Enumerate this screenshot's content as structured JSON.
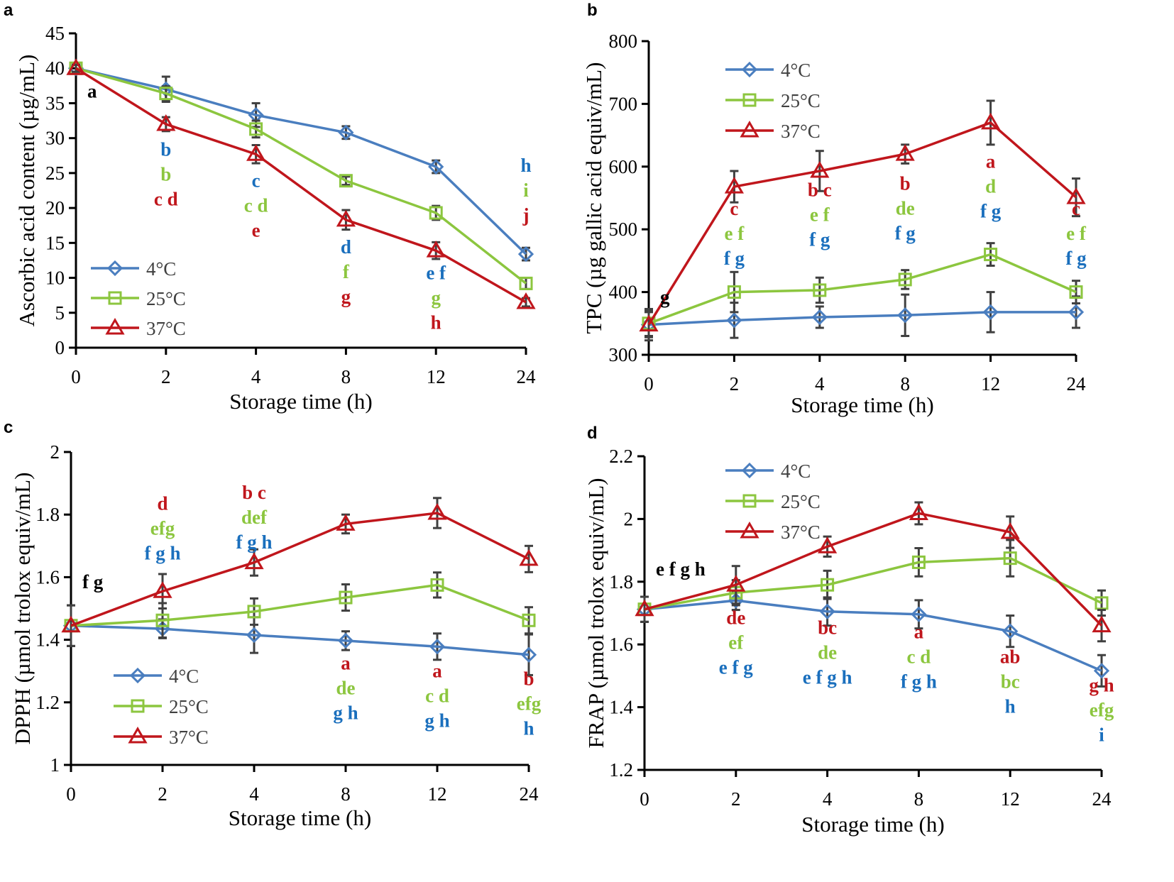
{
  "figure": {
    "series_colors": {
      "4°C": "#4a7ebf",
      "25°C": "#8cc63f",
      "37°C": "#c0161c"
    },
    "letter_colors": {
      "blue": "#1a6fbd",
      "green": "#8cc63f",
      "red": "#c0161c",
      "black": "#000000"
    }
  },
  "chart_data": [
    {
      "panel": "a",
      "type": "line",
      "title": "",
      "xlabel": "Storage time (h)",
      "ylabel": "Ascorbic acid content (µg/mL)",
      "categories": [
        "0",
        "2",
        "4",
        "8",
        "12",
        "24"
      ],
      "ylim": [
        0,
        45
      ],
      "yticks": [
        0,
        5,
        10,
        15,
        20,
        25,
        30,
        35,
        40,
        45
      ],
      "legend": {
        "position": "bottom-left",
        "entries": [
          "4°C",
          "25°C",
          "37°C"
        ]
      },
      "series": [
        {
          "name": "4°C",
          "marker": "diamond",
          "values": [
            40.0,
            37.0,
            33.3,
            30.8,
            25.9,
            13.4
          ],
          "errors": [
            0.5,
            1.8,
            1.7,
            0.9,
            0.9,
            0.9
          ]
        },
        {
          "name": "25°C",
          "marker": "square",
          "values": [
            40.0,
            36.4,
            31.3,
            23.9,
            19.3,
            9.2
          ],
          "errors": [
            0.5,
            1.0,
            1.2,
            0.6,
            1.0,
            0.8
          ]
        },
        {
          "name": "37°C",
          "marker": "triangle",
          "values": [
            40.0,
            32.0,
            27.7,
            18.3,
            13.9,
            6.5
          ],
          "errors": [
            0.5,
            1.0,
            1.3,
            1.4,
            1.2,
            0.6
          ]
        }
      ],
      "annotations": [
        {
          "x": "0",
          "lines": [
            {
              "text": "a",
              "color": "black"
            }
          ],
          "y": 35.8
        },
        {
          "x": "2",
          "lines": [
            {
              "text": "b",
              "color": "blue"
            },
            {
              "text": "b",
              "color": "green"
            },
            {
              "text": "c d",
              "color": "red"
            }
          ],
          "y": 27.5
        },
        {
          "x": "4",
          "lines": [
            {
              "text": "c",
              "color": "blue"
            },
            {
              "text": "c d",
              "color": "green"
            },
            {
              "text": "e",
              "color": "red"
            }
          ],
          "y": 23.0
        },
        {
          "x": "8",
          "lines": [
            {
              "text": "d",
              "color": "blue"
            },
            {
              "text": "f",
              "color": "green"
            },
            {
              "text": "g",
              "color": "red"
            }
          ],
          "y": 13.5
        },
        {
          "x": "12",
          "lines": [
            {
              "text": "e f",
              "color": "blue"
            },
            {
              "text": "g",
              "color": "green"
            },
            {
              "text": "h",
              "color": "red"
            }
          ],
          "y": 9.8
        },
        {
          "x": "24",
          "lines": [
            {
              "text": "h",
              "color": "blue"
            },
            {
              "text": "i",
              "color": "green"
            },
            {
              "text": "j",
              "color": "red"
            }
          ],
          "y": 25.2
        }
      ]
    },
    {
      "panel": "b",
      "type": "line",
      "title": "",
      "xlabel": "Storage time (h)",
      "ylabel": "TPC (µg gallic acid equiv/mL)",
      "categories": [
        "0",
        "2",
        "4",
        "8",
        "12",
        "24"
      ],
      "ylim": [
        300,
        800
      ],
      "yticks": [
        300,
        400,
        500,
        600,
        700,
        800
      ],
      "legend": {
        "position": "top-left",
        "entries": [
          "4°C",
          "25°C",
          "37°C"
        ]
      },
      "series": [
        {
          "name": "4°C",
          "marker": "diamond",
          "values": [
            348,
            355,
            360,
            363,
            368,
            368
          ],
          "errors": [
            25,
            28,
            17,
            33,
            32,
            25
          ]
        },
        {
          "name": "25°C",
          "marker": "square",
          "values": [
            350,
            400,
            403,
            420,
            460,
            400
          ],
          "errors": [
            20,
            32,
            20,
            15,
            18,
            18
          ]
        },
        {
          "name": "37°C",
          "marker": "triangle",
          "values": [
            348,
            568,
            593,
            620,
            670,
            551
          ],
          "errors": [
            20,
            25,
            32,
            15,
            35,
            30
          ]
        }
      ],
      "annotations": [
        {
          "x": "0",
          "lines": [
            {
              "text": "g",
              "color": "black"
            }
          ],
          "y": 382
        },
        {
          "x": "2",
          "lines": [
            {
              "text": "c",
              "color": "red"
            },
            {
              "text": "e f",
              "color": "green"
            },
            {
              "text": "f g",
              "color": "blue"
            }
          ],
          "y": 523
        },
        {
          "x": "4",
          "lines": [
            {
              "text": "b c",
              "color": "red"
            },
            {
              "text": "e f",
              "color": "green"
            },
            {
              "text": "f g",
              "color": "blue"
            }
          ],
          "y": 553
        },
        {
          "x": "8",
          "lines": [
            {
              "text": "b",
              "color": "red"
            },
            {
              "text": "de",
              "color": "green"
            },
            {
              "text": "f g",
              "color": "blue"
            }
          ],
          "y": 563
        },
        {
          "x": "12",
          "lines": [
            {
              "text": "a",
              "color": "red"
            },
            {
              "text": "d",
              "color": "green"
            },
            {
              "text": "f g",
              "color": "blue"
            }
          ],
          "y": 598
        },
        {
          "x": "24",
          "lines": [
            {
              "text": "c",
              "color": "red"
            },
            {
              "text": "e f",
              "color": "green"
            },
            {
              "text": "f g",
              "color": "blue"
            }
          ],
          "y": 523
        }
      ]
    },
    {
      "panel": "c",
      "type": "line",
      "title": "",
      "xlabel": "Storage time (h)",
      "ylabel": "DPPH (µmol trolox equiv/mL)",
      "categories": [
        "0",
        "2",
        "4",
        "8",
        "12",
        "24"
      ],
      "ylim": [
        1,
        2
      ],
      "yticks": [
        1,
        1.2,
        1.4,
        1.6,
        1.8,
        2
      ],
      "legend": {
        "position": "bottom-left",
        "entries": [
          "4°C",
          "25°C",
          "37°C"
        ]
      },
      "series": [
        {
          "name": "4°C",
          "marker": "diamond",
          "values": [
            1.445,
            1.435,
            1.415,
            1.397,
            1.378,
            1.352
          ],
          "errors": [
            0.065,
            0.03,
            0.057,
            0.03,
            0.042,
            0.065
          ]
        },
        {
          "name": "25°C",
          "marker": "square",
          "values": [
            1.445,
            1.462,
            1.49,
            1.535,
            1.575,
            1.462
          ],
          "errors": [
            0.065,
            0.055,
            0.042,
            0.042,
            0.04,
            0.042
          ]
        },
        {
          "name": "37°C",
          "marker": "triangle",
          "values": [
            1.445,
            1.555,
            1.647,
            1.77,
            1.805,
            1.658
          ],
          "errors": [
            0.065,
            0.055,
            0.042,
            0.03,
            0.048,
            0.042
          ]
        }
      ],
      "annotations": [
        {
          "x": "0",
          "lines": [
            {
              "text": "f g",
              "color": "black"
            }
          ],
          "y": 1.565
        },
        {
          "x": "2",
          "lines": [
            {
              "text": "d",
              "color": "red"
            },
            {
              "text": "efg",
              "color": "green"
            },
            {
              "text": "f g h",
              "color": "blue"
            }
          ],
          "y": 1.815
        },
        {
          "x": "4",
          "lines": [
            {
              "text": "b c",
              "color": "red"
            },
            {
              "text": "def",
              "color": "green"
            },
            {
              "text": "f g h",
              "color": "blue"
            }
          ],
          "y": 1.85
        },
        {
          "x": "8",
          "lines": [
            {
              "text": "a",
              "color": "red"
            },
            {
              "text": "de",
              "color": "green"
            },
            {
              "text": "g h",
              "color": "blue"
            }
          ],
          "y": 1.305
        },
        {
          "x": "12",
          "lines": [
            {
              "text": "a",
              "color": "red"
            },
            {
              "text": "c d",
              "color": "green"
            },
            {
              "text": "g h",
              "color": "blue"
            }
          ],
          "y": 1.28
        },
        {
          "x": "24",
          "lines": [
            {
              "text": "b",
              "color": "red"
            },
            {
              "text": "efg",
              "color": "green"
            },
            {
              "text": "h",
              "color": "blue"
            }
          ],
          "y": 1.255
        }
      ]
    },
    {
      "panel": "d",
      "type": "line",
      "title": "",
      "xlabel": "Storage time (h)",
      "ylabel": "FRAP (µmol trolox equiv/mL)",
      "categories": [
        "0",
        "2",
        "4",
        "8",
        "12",
        "24"
      ],
      "ylim": [
        1.2,
        2.2
      ],
      "yticks": [
        1.2,
        1.4,
        1.6,
        1.8,
        2,
        2.2
      ],
      "legend": {
        "position": "top-left",
        "entries": [
          "4°C",
          "25°C",
          "37°C"
        ]
      },
      "series": [
        {
          "name": "4°C",
          "marker": "diamond",
          "values": [
            1.712,
            1.74,
            1.705,
            1.696,
            1.642,
            1.516
          ],
          "errors": [
            0.04,
            0.03,
            0.045,
            0.045,
            0.05,
            0.05
          ]
        },
        {
          "name": "25°C",
          "marker": "square",
          "values": [
            1.712,
            1.765,
            1.79,
            1.862,
            1.875,
            1.732
          ],
          "errors": [
            0.04,
            0.04,
            0.045,
            0.045,
            0.058,
            0.04
          ]
        },
        {
          "name": "37°C",
          "marker": "triangle",
          "values": [
            1.712,
            1.79,
            1.912,
            2.018,
            1.958,
            1.66
          ],
          "errors": [
            0.04,
            0.06,
            0.032,
            0.035,
            0.05,
            0.05
          ]
        }
      ],
      "annotations": [
        {
          "x": "0",
          "lines": [
            {
              "text": "e f g h",
              "color": "black"
            }
          ],
          "y": 1.82
        },
        {
          "x": "2",
          "lines": [
            {
              "text": "de",
              "color": "red"
            },
            {
              "text": "ef",
              "color": "green"
            },
            {
              "text": "e f g",
              "color": "blue"
            }
          ],
          "y": 1.665
        },
        {
          "x": "4",
          "lines": [
            {
              "text": "bc",
              "color": "red"
            },
            {
              "text": "de",
              "color": "green"
            },
            {
              "text": "e f g h",
              "color": "blue"
            }
          ],
          "y": 1.633
        },
        {
          "x": "8",
          "lines": [
            {
              "text": "a",
              "color": "red"
            },
            {
              "text": "c d",
              "color": "green"
            },
            {
              "text": "f g h",
              "color": "blue"
            }
          ],
          "y": 1.62
        },
        {
          "x": "12",
          "lines": [
            {
              "text": "ab",
              "color": "red"
            },
            {
              "text": "bc",
              "color": "green"
            },
            {
              "text": "h",
              "color": "blue"
            }
          ],
          "y": 1.54
        },
        {
          "x": "24",
          "lines": [
            {
              "text": "g h",
              "color": "red"
            },
            {
              "text": "efg",
              "color": "green"
            },
            {
              "text": "i",
              "color": "blue"
            }
          ],
          "y": 1.45
        }
      ]
    }
  ]
}
